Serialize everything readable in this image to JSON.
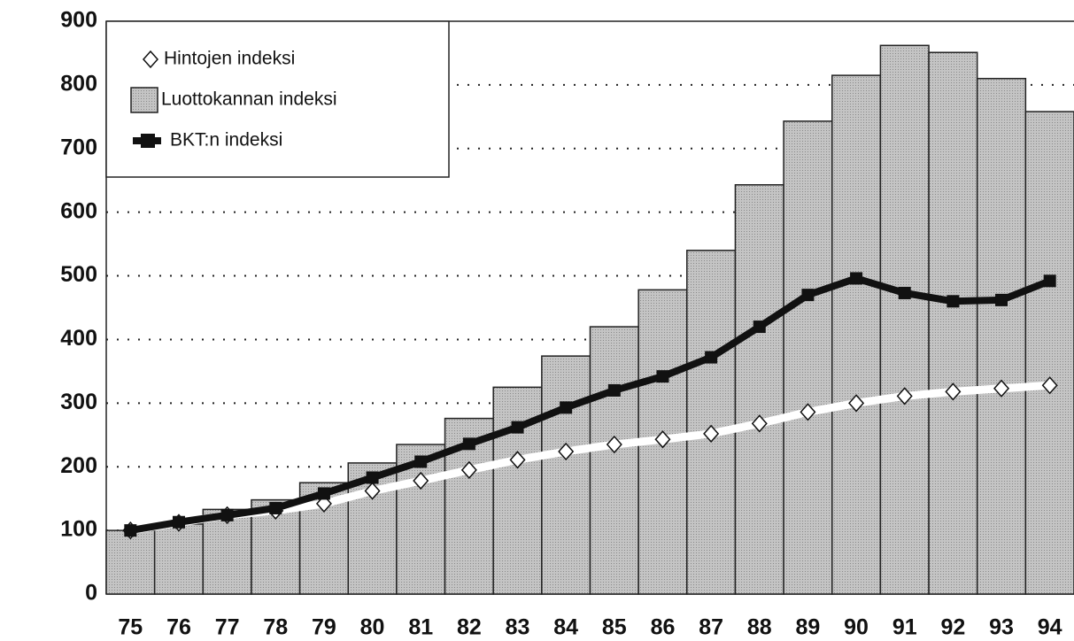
{
  "chart_data": {
    "type": "bar",
    "categories": [
      "75",
      "76",
      "77",
      "78",
      "79",
      "80",
      "81",
      "82",
      "83",
      "84",
      "85",
      "86",
      "87",
      "88",
      "89",
      "90",
      "91",
      "92",
      "93",
      "94"
    ],
    "series": [
      {
        "name": "Hintojen indeksi",
        "type": "line",
        "marker": "diamond",
        "color": "#ffffff",
        "values": [
          100,
          112,
          124,
          131,
          142,
          162,
          178,
          195,
          211,
          224,
          235,
          243,
          252,
          268,
          286,
          300,
          311,
          318,
          323,
          328
        ]
      },
      {
        "name": "Luottokannan indeksi",
        "type": "bar",
        "color": "#b4b4b4",
        "values": [
          100,
          110,
          133,
          148,
          175,
          206,
          235,
          276,
          325,
          374,
          420,
          478,
          540,
          643,
          743,
          815,
          862,
          851,
          810,
          758
        ]
      },
      {
        "name": "BKT:n indeksi",
        "type": "line",
        "marker": "square",
        "color": "#111111",
        "values": [
          100,
          113,
          124,
          135,
          158,
          183,
          208,
          236,
          262,
          293,
          320,
          342,
          372,
          420,
          470,
          496,
          473,
          460,
          462,
          492
        ]
      }
    ],
    "ylim": [
      0,
      900
    ],
    "yticks": [
      0,
      100,
      200,
      300,
      400,
      500,
      600,
      700,
      800,
      900
    ],
    "grid": true
  }
}
